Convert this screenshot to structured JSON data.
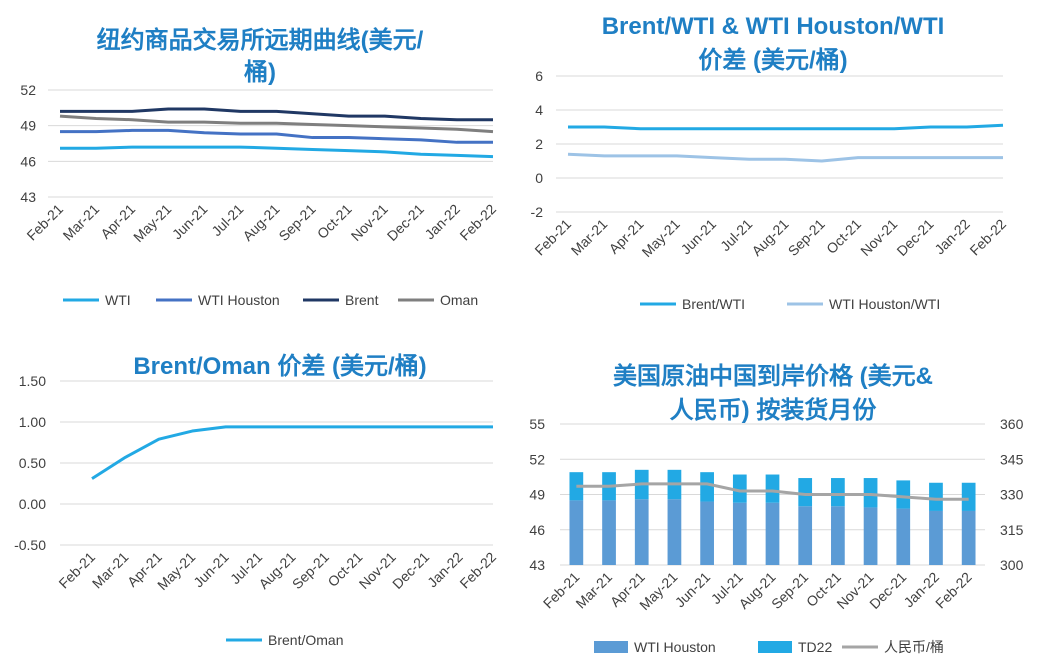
{
  "chart_data": [
    {
      "type": "line",
      "title": [
        "纽约商品交易所远期曲线(美元/",
        "桶)"
      ],
      "categories": [
        "Feb-21",
        "Mar-21",
        "Apr-21",
        "May-21",
        "Jun-21",
        "Jul-21",
        "Aug-21",
        "Sep-21",
        "Oct-21",
        "Nov-21",
        "Dec-21",
        "Jan-22",
        "Feb-22"
      ],
      "yticks": [
        "43",
        "46",
        "49",
        "52"
      ],
      "ylim": [
        43,
        52
      ],
      "series": [
        {
          "name": "WTI",
          "color": "#22a9e4",
          "values": [
            47.1,
            47.1,
            47.2,
            47.2,
            47.2,
            47.2,
            47.1,
            47.0,
            46.9,
            46.8,
            46.6,
            46.5,
            46.4
          ]
        },
        {
          "name": "WTI Houston",
          "color": "#4472c4",
          "values": [
            48.5,
            48.5,
            48.6,
            48.6,
            48.4,
            48.3,
            48.3,
            48.0,
            48.0,
            47.9,
            47.8,
            47.6,
            47.6
          ]
        },
        {
          "name": "Brent",
          "color": "#203864",
          "values": [
            50.2,
            50.2,
            50.2,
            50.4,
            50.4,
            50.2,
            50.2,
            50.0,
            49.8,
            49.8,
            49.6,
            49.5,
            49.5
          ]
        },
        {
          "name": "Oman",
          "color": "#7f7f7f",
          "values": [
            49.8,
            49.6,
            49.5,
            49.3,
            49.3,
            49.2,
            49.2,
            49.1,
            49.0,
            48.9,
            48.8,
            48.7,
            48.5
          ]
        }
      ]
    },
    {
      "type": "line",
      "title": [
        "Brent/WTI & WTI Houston/WTI",
        "价差 (美元/桶)"
      ],
      "categories": [
        "Feb-21",
        "Mar-21",
        "Apr-21",
        "May-21",
        "Jun-21",
        "Jul-21",
        "Aug-21",
        "Sep-21",
        "Oct-21",
        "Nov-21",
        "Dec-21",
        "Jan-22",
        "Feb-22"
      ],
      "yticks": [
        "-2",
        "0",
        "2",
        "4",
        "6"
      ],
      "ylim": [
        -2,
        6
      ],
      "series": [
        {
          "name": "Brent/WTI",
          "color": "#22a9e4",
          "values": [
            3.0,
            3.0,
            2.9,
            2.9,
            2.9,
            2.9,
            2.9,
            2.9,
            2.9,
            2.9,
            3.0,
            3.0,
            3.1
          ]
        },
        {
          "name": "WTI Houston/WTI",
          "color": "#9dc3e6",
          "values": [
            1.4,
            1.3,
            1.3,
            1.3,
            1.2,
            1.1,
            1.1,
            1.0,
            1.2,
            1.2,
            1.2,
            1.2,
            1.2
          ]
        }
      ]
    },
    {
      "type": "line",
      "title": [
        "Brent/Oman 价差 (美元/桶)"
      ],
      "categories": [
        "Feb-21",
        "Mar-21",
        "Apr-21",
        "May-21",
        "Jun-21",
        "Jul-21",
        "Aug-21",
        "Sep-21",
        "Oct-21",
        "Nov-21",
        "Dec-21",
        "Jan-22",
        "Feb-22"
      ],
      "yticks": [
        "-0.50",
        "0.00",
        "0.50",
        "1.00",
        "1.50"
      ],
      "ylim": [
        -0.5,
        1.5
      ],
      "series": [
        {
          "name": "Brent/Oman",
          "color": "#22a9e4",
          "values": [
            0.31,
            0.57,
            0.79,
            0.89,
            0.94,
            0.94,
            0.94,
            0.94,
            0.94,
            0.94,
            0.94,
            0.94,
            0.94
          ]
        }
      ]
    },
    {
      "type": "bar",
      "title": [
        "美国原油中国到岸价格 (美元&",
        "人民币) 按装货月份"
      ],
      "categories": [
        "Feb-21",
        "Mar-21",
        "Apr-21",
        "May-21",
        "Jun-21",
        "Jul-21",
        "Aug-21",
        "Sep-21",
        "Oct-21",
        "Nov-21",
        "Dec-21",
        "Jan-22",
        "Feb-22"
      ],
      "yticks": [
        "43",
        "46",
        "49",
        "52",
        "55"
      ],
      "ylim": [
        43,
        55
      ],
      "y2ticks": [
        "300",
        "315",
        "330",
        "345",
        "360"
      ],
      "y2lim": [
        300,
        360
      ],
      "series": [
        {
          "name": "WTI Houston",
          "color": "#5b9bd5",
          "values": [
            48.5,
            48.5,
            48.6,
            48.6,
            48.4,
            48.3,
            48.3,
            48.0,
            48.0,
            47.9,
            47.8,
            47.6,
            47.6
          ]
        },
        {
          "name": "TD22",
          "color": "#22a9e4",
          "values": [
            2.4,
            2.4,
            2.5,
            2.5,
            2.5,
            2.4,
            2.4,
            2.4,
            2.4,
            2.5,
            2.4,
            2.4,
            2.4
          ]
        },
        {
          "name": "人民币/桶",
          "color": "#a5a5a5",
          "axis": "y2",
          "values": [
            333.5,
            333.5,
            334.5,
            334.5,
            334.5,
            331.5,
            331.5,
            330,
            330,
            330,
            329,
            328,
            328
          ]
        }
      ]
    }
  ]
}
